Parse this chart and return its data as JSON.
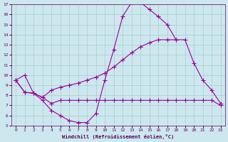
{
  "xlabel": "Windchill (Refroidissement éolien,°C)",
  "bg_color": "#cce8ee",
  "grid_color": "#aacccc",
  "line_color": "#990099",
  "xlim": [
    -0.5,
    23.5
  ],
  "ylim": [
    5,
    17
  ],
  "yticks": [
    5,
    6,
    7,
    8,
    9,
    10,
    11,
    12,
    13,
    14,
    15,
    16,
    17
  ],
  "xticks": [
    0,
    1,
    2,
    3,
    4,
    5,
    6,
    7,
    8,
    9,
    10,
    11,
    12,
    13,
    14,
    15,
    16,
    17,
    18,
    19,
    20,
    21,
    22,
    23
  ],
  "line1_x": [
    0,
    1,
    2,
    3,
    4,
    5,
    6,
    7,
    8,
    9,
    10,
    11,
    12,
    13,
    14,
    15,
    16,
    17,
    18
  ],
  "line1_y": [
    9.5,
    10.0,
    8.2,
    7.5,
    6.5,
    6.0,
    5.5,
    5.3,
    5.3,
    6.2,
    9.5,
    12.5,
    15.8,
    17.2,
    17.2,
    16.5,
    15.8,
    15.0,
    13.5
  ],
  "line2_x": [
    0,
    1,
    2,
    3,
    4,
    5,
    6,
    7,
    8,
    9,
    10,
    11,
    12,
    13,
    14,
    15,
    16,
    17,
    18,
    19,
    20,
    21,
    22,
    23
  ],
  "line2_y": [
    9.5,
    8.3,
    8.2,
    7.8,
    7.2,
    7.5,
    7.5,
    7.5,
    7.5,
    7.5,
    7.5,
    7.5,
    7.5,
    7.5,
    7.5,
    7.5,
    7.5,
    7.5,
    7.5,
    7.5,
    7.5,
    7.5,
    7.5,
    7.0
  ],
  "line3_x": [
    0,
    1,
    2,
    3,
    4,
    5,
    6,
    7,
    8,
    9,
    10,
    11,
    12,
    13,
    14,
    15,
    16,
    17,
    18,
    19,
    20,
    21,
    22,
    23
  ],
  "line3_y": [
    9.5,
    8.3,
    8.2,
    7.8,
    8.5,
    8.8,
    9.0,
    9.2,
    9.5,
    9.8,
    10.2,
    10.8,
    11.5,
    12.2,
    12.8,
    13.2,
    13.5,
    13.5,
    13.5,
    13.5,
    11.2,
    9.5,
    8.5,
    7.2
  ]
}
